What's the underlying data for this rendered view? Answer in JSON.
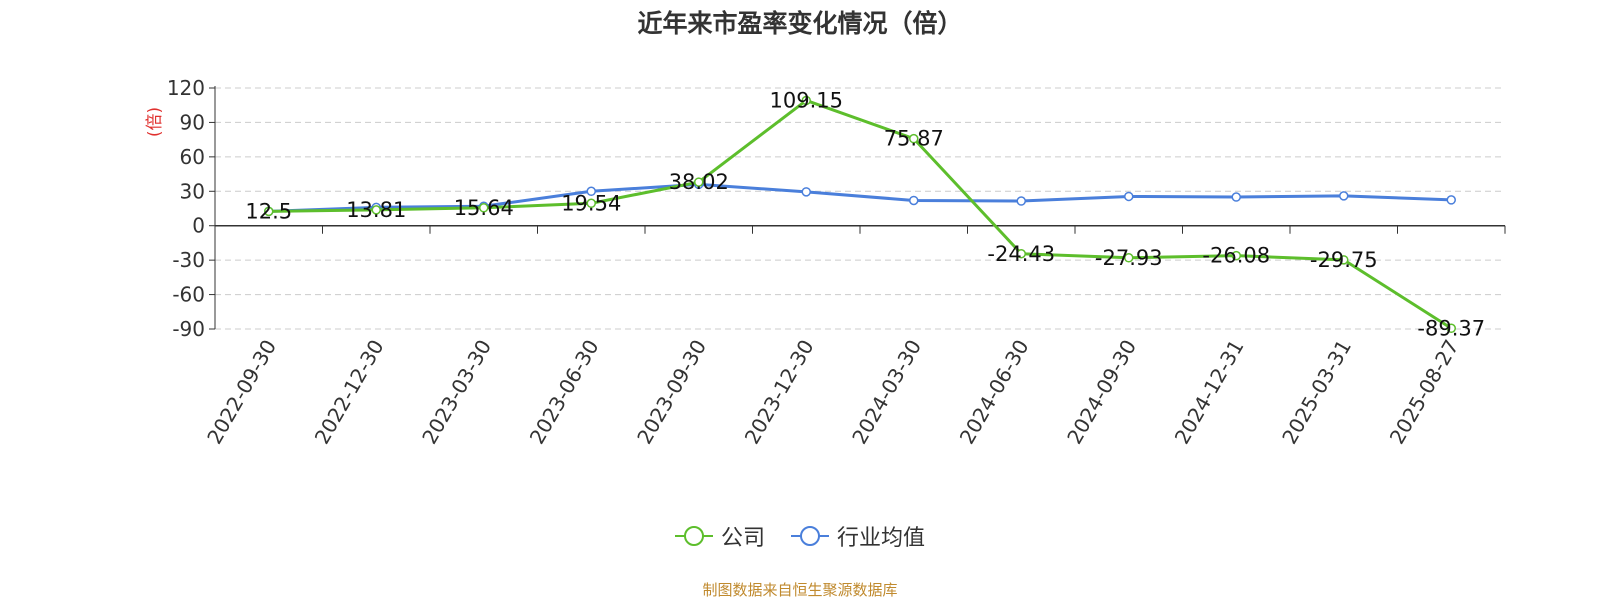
{
  "title": "近年来市盈率变化情况（倍）",
  "source": "制图数据来自恒生聚源数据库",
  "colors": {
    "company": "#5dbe2c",
    "industry": "#4a7fdb",
    "unit_label": "#e0312f",
    "grid": "#cccccc",
    "axis": "#333333"
  },
  "chart_data": {
    "type": "line",
    "ylabel": "(倍)",
    "ylim": [
      -90,
      120
    ],
    "yticks": [
      120,
      90,
      60,
      30,
      0,
      -30,
      -60,
      -90
    ],
    "grid": true,
    "legend_position": "bottom-center",
    "categories": [
      "2022-09-30",
      "2022-12-30",
      "2023-03-30",
      "2023-06-30",
      "2023-09-30",
      "2023-12-30",
      "2024-03-30",
      "2024-06-30",
      "2024-09-30",
      "2024-12-31",
      "2025-03-31",
      "2025-08-27"
    ],
    "series": [
      {
        "name": "公司",
        "values": [
          12.5,
          13.81,
          15.64,
          19.54,
          38.02,
          109.15,
          75.87,
          -24.43,
          -27.93,
          -26.08,
          -29.75,
          -89.37
        ],
        "labels": [
          "12.5",
          "13.81",
          "15.64",
          "19.54",
          "38.02",
          "109.15",
          "75.87",
          "-24.43",
          "-27.93",
          "-26.08",
          "-29.75",
          "-89.37"
        ]
      },
      {
        "name": "行业均值",
        "values": [
          12.5,
          16,
          17,
          30,
          36,
          29.5,
          22,
          21.5,
          25.5,
          25,
          26,
          22.5
        ]
      }
    ]
  }
}
